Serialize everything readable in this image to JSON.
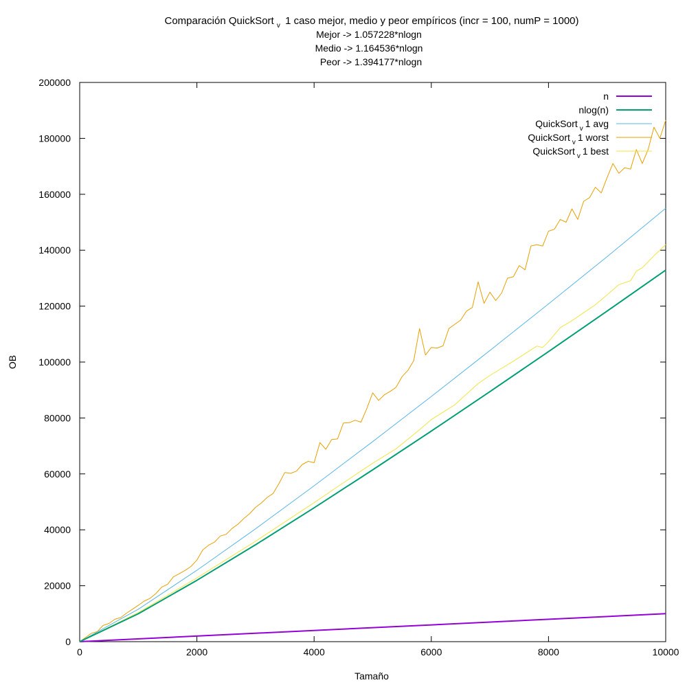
{
  "chart_data": {
    "type": "line",
    "title": {
      "prefix": "Comparación QuickSort",
      "sub": "v",
      "suffix": "1 caso mejor, medio y peor empíricos (incr = 100, numP = 1000)"
    },
    "subtitles": [
      "Mejor -> 1.057228*nlogn",
      "Medio -> 1.164536*nlogn",
      "Peor -> 1.394177*nlogn"
    ],
    "xlabel": "Tamaño",
    "ylabel": "OB",
    "xlim": [
      0,
      10000
    ],
    "ylim": [
      0,
      200000
    ],
    "xticks": [
      0,
      2000,
      4000,
      6000,
      8000,
      10000
    ],
    "yticks": [
      0,
      20000,
      40000,
      60000,
      80000,
      100000,
      120000,
      140000,
      160000,
      180000,
      200000
    ],
    "grid": false,
    "legend_position": "top-right",
    "series": [
      {
        "name": "n",
        "color": "#9400d3",
        "width": 2,
        "x": [
          0,
          10000
        ],
        "y": [
          0,
          10000
        ]
      },
      {
        "name": "nlog(n)",
        "color": "#009e73",
        "width": 2,
        "x": [
          0,
          1000,
          2000,
          3000,
          4000,
          5000,
          6000,
          7000,
          8000,
          9000,
          10000
        ],
        "y": [
          0,
          9966,
          21932,
          34652,
          47863,
          61439,
          75304,
          89411,
          103726,
          118226,
          132877
        ]
      },
      {
        "name": {
          "prefix": "QuickSort",
          "sub": "v",
          "suffix": "1 avg"
        },
        "color": "#56b4e9",
        "width": 1,
        "x": [
          0,
          1000,
          2000,
          3000,
          4000,
          5000,
          6000,
          7000,
          8000,
          9000,
          10000
        ],
        "y": [
          0,
          11605,
          25540,
          40353,
          55738,
          71548,
          87695,
          104121,
          120790,
          137680,
          155000
        ]
      },
      {
        "name": {
          "prefix": "QuickSort",
          "sub": "v",
          "suffix": "1 worst"
        },
        "color": "#e69f00",
        "width": 1,
        "x": [
          0,
          200,
          300,
          400,
          500,
          600,
          700,
          800,
          900,
          1000,
          1100,
          1200,
          1300,
          1400,
          1500,
          1600,
          1700,
          1800,
          1900,
          2000,
          2100,
          2200,
          2300,
          2400,
          2500,
          2600,
          2700,
          2800,
          2900,
          3000,
          3100,
          3200,
          3300,
          3400,
          3500,
          3600,
          3700,
          3800,
          3900,
          4000,
          4100,
          4200,
          4300,
          4400,
          4500,
          4600,
          4700,
          4800,
          4900,
          5000,
          5100,
          5200,
          5300,
          5400,
          5500,
          5600,
          5700,
          5800,
          5900,
          6000,
          6100,
          6200,
          6300,
          6400,
          6500,
          6600,
          6700,
          6800,
          6900,
          7000,
          7100,
          7200,
          7300,
          7400,
          7500,
          7600,
          7700,
          7800,
          7900,
          8000,
          8100,
          8200,
          8300,
          8400,
          8500,
          8600,
          8700,
          8800,
          8900,
          9000,
          9100,
          9200,
          9300,
          9400,
          9500,
          9600,
          9700,
          9800,
          9900,
          10000
        ],
        "y": [
          0,
          3000,
          3600,
          5800,
          6500,
          8000,
          8600,
          10200,
          11600,
          13000,
          14500,
          15500,
          17200,
          19500,
          20500,
          23200,
          24300,
          25500,
          26900,
          29200,
          32800,
          34500,
          35600,
          37800,
          38400,
          40500,
          42000,
          44000,
          45800,
          48000,
          49600,
          51600,
          53000,
          56500,
          60500,
          60200,
          61000,
          63400,
          64500,
          64000,
          71200,
          68800,
          72300,
          72500,
          78200,
          78300,
          79200,
          78500,
          83400,
          89000,
          86300,
          88300,
          89500,
          91000,
          94800,
          97000,
          100500,
          112000,
          102500,
          105200,
          105000,
          105800,
          112000,
          113500,
          115000,
          118200,
          119500,
          128700,
          121000,
          125000,
          122000,
          124700,
          130000,
          130500,
          134500,
          133000,
          141500,
          142000,
          141500,
          146800,
          147500,
          151000,
          150000,
          154800,
          151000,
          157500,
          158800,
          162500,
          160500,
          166000,
          171000,
          167500,
          169500,
          169000,
          176000,
          171000,
          176000,
          184000,
          180000,
          186500
        ]
      },
      {
        "name": {
          "prefix": "QuickSort",
          "sub": "v",
          "suffix": "1 best"
        },
        "color": "#f0e442",
        "width": 1,
        "x": [
          0,
          1000,
          2000,
          3000,
          4000,
          4400,
          4800,
          5000,
          5400,
          5800,
          6000,
          6400,
          6800,
          7000,
          7400,
          7800,
          7900,
          8000,
          8200,
          8400,
          8800,
          9000,
          9200,
          9400,
          9500,
          9600,
          9800,
          10000
        ],
        "y": [
          0,
          10400,
          22800,
          35900,
          49700,
          55400,
          61000,
          63800,
          69000,
          75800,
          79400,
          84700,
          92300,
          95200,
          100300,
          105700,
          105200,
          107300,
          112300,
          114800,
          120500,
          124000,
          127700,
          129100,
          132500,
          133700,
          138000,
          142000
        ]
      }
    ]
  }
}
